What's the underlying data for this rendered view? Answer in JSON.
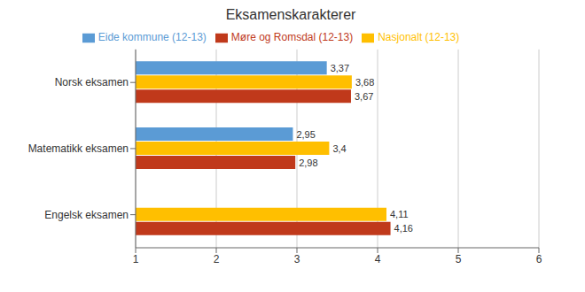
{
  "chart_data": {
    "type": "bar",
    "orientation": "horizontal",
    "title": "Eksamenskarakterer",
    "categories": [
      "Norsk eksamen",
      "Matematikk eksamen",
      "Engelsk eksamen"
    ],
    "series": [
      {
        "name": "Eide kommune (12-13)",
        "color": "#5B9BD5",
        "values": [
          3.37,
          2.95,
          null
        ],
        "value_labels": [
          "3,37",
          "2,95",
          null
        ]
      },
      {
        "name": "Nasjonalt (12-13)",
        "color": "#FFBF00",
        "values": [
          3.68,
          3.4,
          4.11
        ],
        "value_labels": [
          "3,68",
          "3,4",
          "4,11"
        ]
      },
      {
        "name": "Møre og Romsdal (12-13)",
        "color": "#C0391B",
        "values": [
          3.67,
          2.98,
          4.16
        ],
        "value_labels": [
          "3,67",
          "2,98",
          "4,16"
        ]
      }
    ],
    "xlim": [
      1,
      6
    ],
    "xticks": [
      1,
      2,
      3,
      4,
      5,
      6
    ],
    "grid": true,
    "legend": "top",
    "data_labels": true
  }
}
